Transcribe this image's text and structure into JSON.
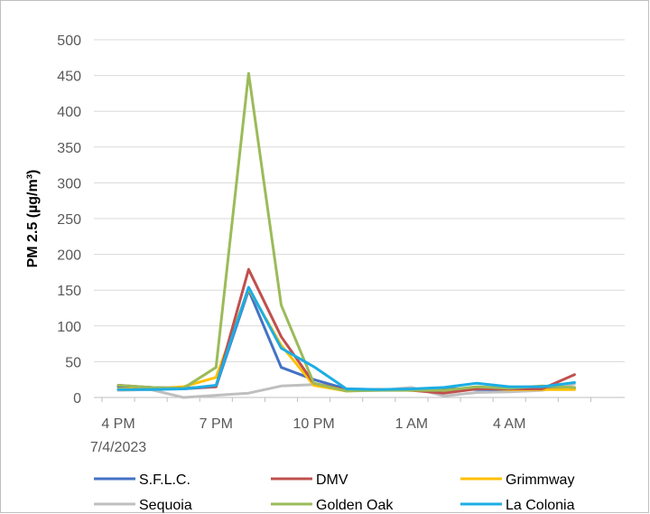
{
  "chart_data": {
    "type": "line",
    "title": "",
    "xlabel": "",
    "ylabel": "PM 2.5 (µg/m³)",
    "ylim": [
      0,
      500
    ],
    "ytick_step": 50,
    "grid": true,
    "legend_position": "bottom",
    "x_tick_labels": [
      "4 PM",
      "7 PM",
      "10 PM",
      "1 AM",
      "4 AM"
    ],
    "x_date_label": "7/4/2023",
    "x": [
      "4 PM",
      "5 PM",
      "6 PM",
      "7 PM",
      "8 PM",
      "9 PM",
      "10 PM",
      "11 PM",
      "12 AM",
      "1 AM",
      "2 AM",
      "3 AM",
      "4 AM",
      "5 AM",
      "6 AM"
    ],
    "series": [
      {
        "name": "S.F.L.C.",
        "color": "#4472C4",
        "values": [
          15,
          14,
          12,
          15,
          150,
          42,
          25,
          12,
          11,
          11,
          13,
          11,
          11,
          13,
          13
        ]
      },
      {
        "name": "DMV",
        "color": "#C0504D",
        "values": [
          17,
          14,
          13,
          15,
          179,
          85,
          20,
          10,
          11,
          10,
          6,
          12,
          12,
          12,
          32
        ]
      },
      {
        "name": "Grimmway",
        "color": "#FFC000",
        "values": [
          12,
          12,
          15,
          28,
          152,
          73,
          17,
          9,
          11,
          10,
          9,
          13,
          11,
          11,
          11
        ]
      },
      {
        "name": "Sequoia",
        "color": "#BFBFBF",
        "values": [
          10,
          11,
          0,
          3,
          6,
          16,
          18,
          10,
          10,
          14,
          2,
          7,
          8,
          10,
          19
        ]
      },
      {
        "name": "Golden Oak",
        "color": "#9BBB59",
        "values": [
          17,
          14,
          13,
          42,
          453,
          129,
          20,
          9,
          10,
          10,
          10,
          15,
          13,
          16,
          14
        ]
      },
      {
        "name": "La Colonia",
        "color": "#1CADE4",
        "values": [
          11,
          11,
          12,
          17,
          154,
          69,
          43,
          12,
          11,
          12,
          14,
          20,
          15,
          15,
          21
        ]
      }
    ]
  }
}
